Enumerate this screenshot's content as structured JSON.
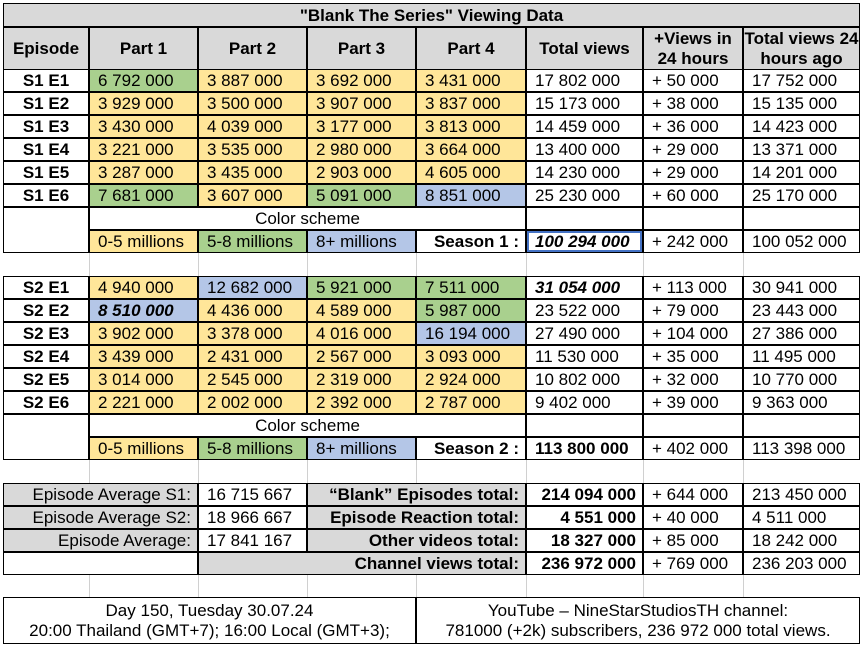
{
  "title": "\"Blank The Series\" Viewing Data",
  "headers": [
    "Episode",
    "Part 1",
    "Part 2",
    "Part 3",
    "Part 4",
    "Total views",
    "+Views in 24 hours",
    "Total views 24 hours ago"
  ],
  "season1": {
    "rows": [
      {
        "ep": "S1 E1",
        "p": [
          "6 792 000",
          "3 887 000",
          "3 692 000",
          "3 431 000"
        ],
        "total": "17 802 000",
        "plus": "+ 50 000",
        "ago": "17 752 000"
      },
      {
        "ep": "S1 E2",
        "p": [
          "3 929 000",
          "3 500 000",
          "3 907 000",
          "3 837 000"
        ],
        "total": "15 173 000",
        "plus": "+ 38 000",
        "ago": "15 135 000"
      },
      {
        "ep": "S1 E3",
        "p": [
          "3 430 000",
          "4 039 000",
          "3 177 000",
          "3 813 000"
        ],
        "total": "14 459 000",
        "plus": "+ 36 000",
        "ago": "14 423 000"
      },
      {
        "ep": "S1 E4",
        "p": [
          "3 221 000",
          "3 535 000",
          "2 980 000",
          "3 664 000"
        ],
        "total": "13 400 000",
        "plus": "+ 29 000",
        "ago": "13 371 000"
      },
      {
        "ep": "S1 E5",
        "p": [
          "3 287 000",
          "3 435 000",
          "2 903 000",
          "4 605 000"
        ],
        "total": "14 230 000",
        "plus": "+ 29 000",
        "ago": "14 201 000"
      },
      {
        "ep": "S1 E6",
        "p": [
          "7 681 000",
          "3 607 000",
          "5 091 000",
          "8 851 000"
        ],
        "total": "25 230 000",
        "plus": "+ 60 000",
        "ago": "25 170 000"
      }
    ],
    "legend_title": "Color scheme",
    "legend": [
      "0-5 millions",
      "5-8 millions",
      "8+ millions"
    ],
    "total_label": "Season 1 :",
    "total": "100 294 000",
    "plus": "+ 242 000",
    "ago": "100 052 000"
  },
  "season2": {
    "rows": [
      {
        "ep": "S2 E1",
        "p": [
          "4 940 000",
          "12 682 000",
          "5 921 000",
          "7 511 000"
        ],
        "total": "31 054 000",
        "plus": "+ 113 000",
        "ago": "30 941 000"
      },
      {
        "ep": "S2 E2",
        "p": [
          "8 510 000",
          "4 436 000",
          "4 589 000",
          "5 987 000"
        ],
        "total": "23 522 000",
        "plus": "+ 79 000",
        "ago": "23 443 000"
      },
      {
        "ep": "S2 E3",
        "p": [
          "3 902 000",
          "3 378 000",
          "4 016 000",
          "16 194 000"
        ],
        "total": "27 490 000",
        "plus": "+ 104 000",
        "ago": "27 386 000"
      },
      {
        "ep": "S2 E4",
        "p": [
          "3 439 000",
          "2 431 000",
          "2 567 000",
          "3 093 000"
        ],
        "total": "11 530 000",
        "plus": "+ 35 000",
        "ago": "11 495 000"
      },
      {
        "ep": "S2 E5",
        "p": [
          "3 014 000",
          "2 545 000",
          "2 319 000",
          "2 924 000"
        ],
        "total": "10 802 000",
        "plus": "+ 32 000",
        "ago": "10 770 000"
      },
      {
        "ep": "S2 E6",
        "p": [
          "2 221 000",
          "2 002 000",
          "2 392 000",
          "2 787 000"
        ],
        "total": "9 402 000",
        "plus": "+ 39 000",
        "ago": "9 363 000"
      }
    ],
    "legend_title": "Color scheme",
    "legend": [
      "0-5 millions",
      "5-8 millions",
      "8+ millions"
    ],
    "total_label": "Season 2 :",
    "total": "113 800 000",
    "plus": "+ 402 000",
    "ago": "113 398 000"
  },
  "summary": [
    {
      "label": "Episode Average S1:",
      "value": "16 715 667",
      "tlabel": "“Blank” Episodes total:",
      "total": "214 094 000",
      "plus": "+ 644 000",
      "ago": "213 450 000"
    },
    {
      "label": "Episode Average S2:",
      "value": "18 966 667",
      "tlabel": "Episode Reaction total:",
      "total": "4 551 000",
      "plus": "+ 40 000",
      "ago": "4 511 000"
    },
    {
      "label": "Episode Average:",
      "value": "17 841 167",
      "tlabel": "Other videos total:",
      "total": "18 327 000",
      "plus": "+ 85 000",
      "ago": "18 242 000"
    },
    {
      "label": "",
      "value": "",
      "tlabel": "Channel views total:",
      "total": "236 972 000",
      "plus": "+ 769 000",
      "ago": "236 203 000"
    }
  ],
  "footer": {
    "left1": "Day 150, Tuesday 30.07.24",
    "left2": "20:00 Thailand (GMT+7); 16:00 Local (GMT+3);",
    "right1": "YouTube – NineStarStudiosTH channel:",
    "right2": "781000 (+2k) subscribers, 236 972 000 total views."
  },
  "colors": {
    "low": "#ffe699",
    "mid": "#a9d08e",
    "high": "#b4c6e7",
    "header": "#d9d9d9"
  }
}
